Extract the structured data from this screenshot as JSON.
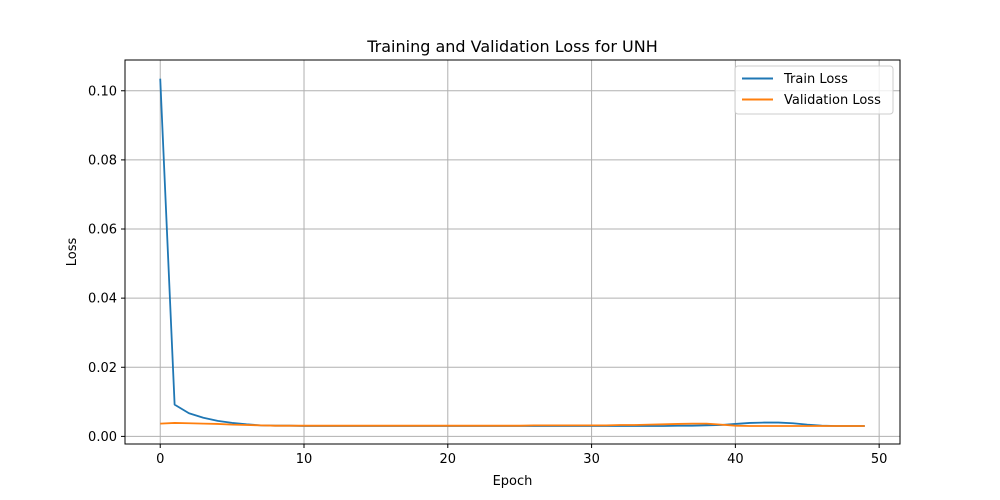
{
  "chart_data": {
    "type": "line",
    "title": "Training and Validation Loss for UNH",
    "xlabel": "Epoch",
    "ylabel": "Loss",
    "xlim": [
      -2.45,
      51.45
    ],
    "ylim": [
      -0.0022,
      0.1089
    ],
    "xticks": [
      0,
      10,
      20,
      30,
      40,
      50
    ],
    "xtick_labels": [
      "0",
      "10",
      "20",
      "30",
      "40",
      "50"
    ],
    "yticks": [
      0.0,
      0.02,
      0.04,
      0.06,
      0.08,
      0.1
    ],
    "ytick_labels": [
      "0.00",
      "0.02",
      "0.04",
      "0.06",
      "0.08",
      "0.10"
    ],
    "grid": true,
    "legend_position": "top-right",
    "x": [
      0,
      1,
      2,
      3,
      4,
      5,
      6,
      7,
      8,
      9,
      10,
      11,
      12,
      13,
      14,
      15,
      16,
      17,
      18,
      19,
      20,
      21,
      22,
      23,
      24,
      25,
      26,
      27,
      28,
      29,
      30,
      31,
      32,
      33,
      34,
      35,
      36,
      37,
      38,
      39,
      40,
      41,
      42,
      43,
      44,
      45,
      46,
      47,
      48,
      49
    ],
    "series": [
      {
        "name": "Train Loss",
        "color": "#1f77b4",
        "values": [
          0.1035,
          0.0092,
          0.0067,
          0.0054,
          0.0045,
          0.0039,
          0.0035,
          0.0032,
          0.0031,
          0.0031,
          0.003,
          0.003,
          0.003,
          0.003,
          0.003,
          0.003,
          0.003,
          0.003,
          0.003,
          0.003,
          0.003,
          0.003,
          0.003,
          0.003,
          0.003,
          0.003,
          0.003,
          0.003,
          0.003,
          0.003,
          0.003,
          0.003,
          0.003,
          0.003,
          0.003,
          0.003,
          0.0031,
          0.0031,
          0.0032,
          0.0033,
          0.0036,
          0.0039,
          0.004,
          0.004,
          0.0038,
          0.0034,
          0.0031,
          0.003,
          0.003,
          0.003
        ]
      },
      {
        "name": "Validation Loss",
        "color": "#ff7f0e",
        "values": [
          0.0037,
          0.0039,
          0.0038,
          0.0037,
          0.0036,
          0.0034,
          0.0033,
          0.0032,
          0.0031,
          0.0031,
          0.0031,
          0.0031,
          0.0031,
          0.0031,
          0.0031,
          0.0031,
          0.0031,
          0.0031,
          0.0031,
          0.0031,
          0.0031,
          0.0031,
          0.0031,
          0.0031,
          0.0031,
          0.0031,
          0.0032,
          0.0032,
          0.0032,
          0.0032,
          0.0032,
          0.0032,
          0.0033,
          0.0033,
          0.0034,
          0.0035,
          0.0036,
          0.0037,
          0.0037,
          0.0034,
          0.0031,
          0.003,
          0.003,
          0.003,
          0.003,
          0.003,
          0.003,
          0.003,
          0.003,
          0.003
        ]
      }
    ]
  }
}
